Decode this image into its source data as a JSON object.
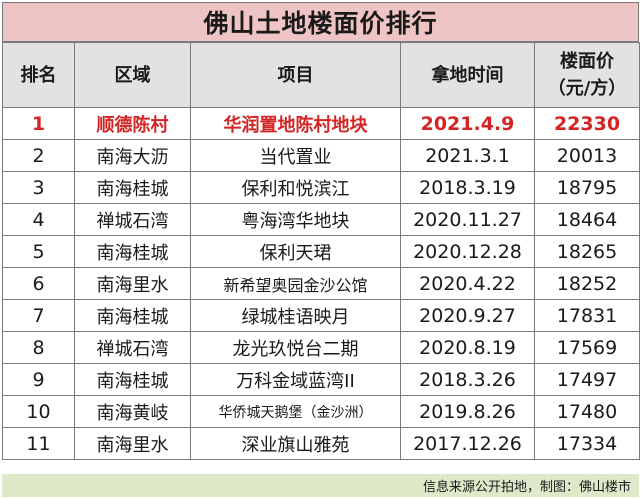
{
  "title": "佛山土地楼面价排行",
  "headers": {
    "rank": "排名",
    "area": "区域",
    "project": "项目",
    "date": "拿地时间",
    "price_line1": "楼面价",
    "price_line2": "（元/方）"
  },
  "rows": [
    {
      "rank": "1",
      "area": "顺德陈村",
      "project": "华润置地陈村地块",
      "date": "2021.4.9",
      "price": "22330"
    },
    {
      "rank": "2",
      "area": "南海大沥",
      "project": "当代置业",
      "date": "2021.3.1",
      "price": "20013"
    },
    {
      "rank": "3",
      "area": "南海桂城",
      "project": "保利和悦滨江",
      "date": "2018.3.19",
      "price": "18795"
    },
    {
      "rank": "4",
      "area": "禅城石湾",
      "project": "粤海湾华地块",
      "date": "2020.11.27",
      "price": "18464"
    },
    {
      "rank": "5",
      "area": "南海桂城",
      "project": "保利天珺",
      "date": "2020.12.28",
      "price": "18265"
    },
    {
      "rank": "6",
      "area": "南海里水",
      "project": "新希望奥园金沙公馆",
      "date": "2020.4.22",
      "price": "18252"
    },
    {
      "rank": "7",
      "area": "南海桂城",
      "project": "绿城桂语映月",
      "date": "2020.9.27",
      "price": "17831"
    },
    {
      "rank": "8",
      "area": "禅城石湾",
      "project": "龙光玖悦台二期",
      "date": "2020.8.19",
      "price": "17569"
    },
    {
      "rank": "9",
      "area": "南海桂城",
      "project": "万科金域蓝湾II",
      "date": "2018.3.26",
      "price": "17497"
    },
    {
      "rank": "10",
      "area": "南海黄岐",
      "project": "华侨城天鹅堡（金沙洲）",
      "date": "2019.8.26",
      "price": "17480"
    },
    {
      "rank": "11",
      "area": "南海里水",
      "project": "深业旗山雅苑",
      "date": "2017.12.26",
      "price": "17334"
    }
  ],
  "footer": "信息来源公开拍地，制图：佛山楼市",
  "colors": {
    "title_bg": "#efc4c4",
    "header_bg": "#e2e2e2",
    "highlight_text": "#d42424",
    "footer_bg": "#dde9c9"
  }
}
